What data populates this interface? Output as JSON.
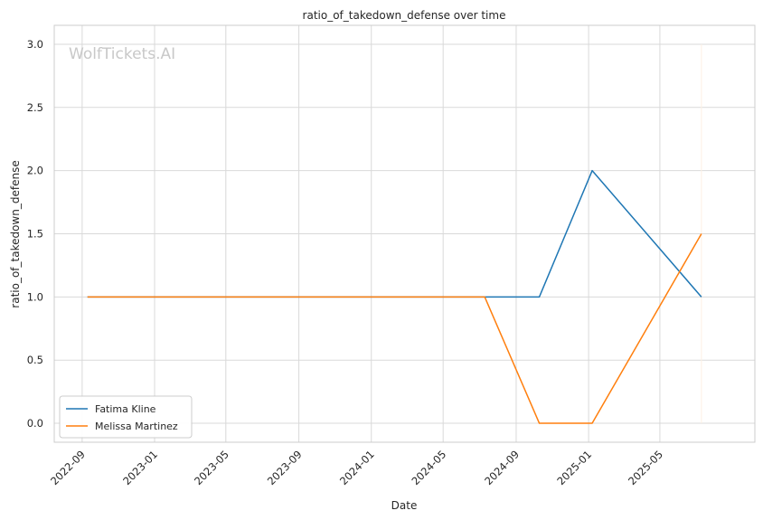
{
  "chart_data": {
    "type": "line",
    "title": "ratio_of_takedown_defense over time",
    "xlabel": "Date",
    "ylabel": "ratio_of_takedown_defense",
    "watermark": "WolfTickets.AI",
    "x_ticks": [
      "2022-09",
      "2023-01",
      "2023-05",
      "2023-09",
      "2024-01",
      "2024-05",
      "2024-09",
      "2025-01",
      "2025-05"
    ],
    "xlim": [
      "2022-07-16",
      "2025-10-08"
    ],
    "y_ticks": [
      "0.0",
      "0.5",
      "1.0",
      "1.5",
      "2.0",
      "2.5",
      "3.0"
    ],
    "ylim": [
      -0.15,
      3.15
    ],
    "grid": true,
    "legend_position": "lower-left",
    "series": [
      {
        "name": "Fatima Kline",
        "color": "#1f77b4",
        "x": [
          "2022-09-10",
          "2024-07-10",
          "2024-10-10",
          "2025-01-07",
          "2025-07-10"
        ],
        "y": [
          1.0,
          1.0,
          1.0,
          2.0,
          1.0
        ]
      },
      {
        "name": "Melissa Martinez",
        "color": "#ff7f0e",
        "x": [
          "2022-09-10",
          "2024-07-10",
          "2024-10-10",
          "2025-01-07",
          "2025-07-10"
        ],
        "y": [
          1.0,
          1.0,
          0.0,
          0.0,
          1.5
        ]
      }
    ],
    "annotations": [
      {
        "type": "vertical-line",
        "x": "2025-07-10",
        "y_range": [
          0.0,
          3.0
        ],
        "color": "#fdf0e4"
      }
    ]
  }
}
